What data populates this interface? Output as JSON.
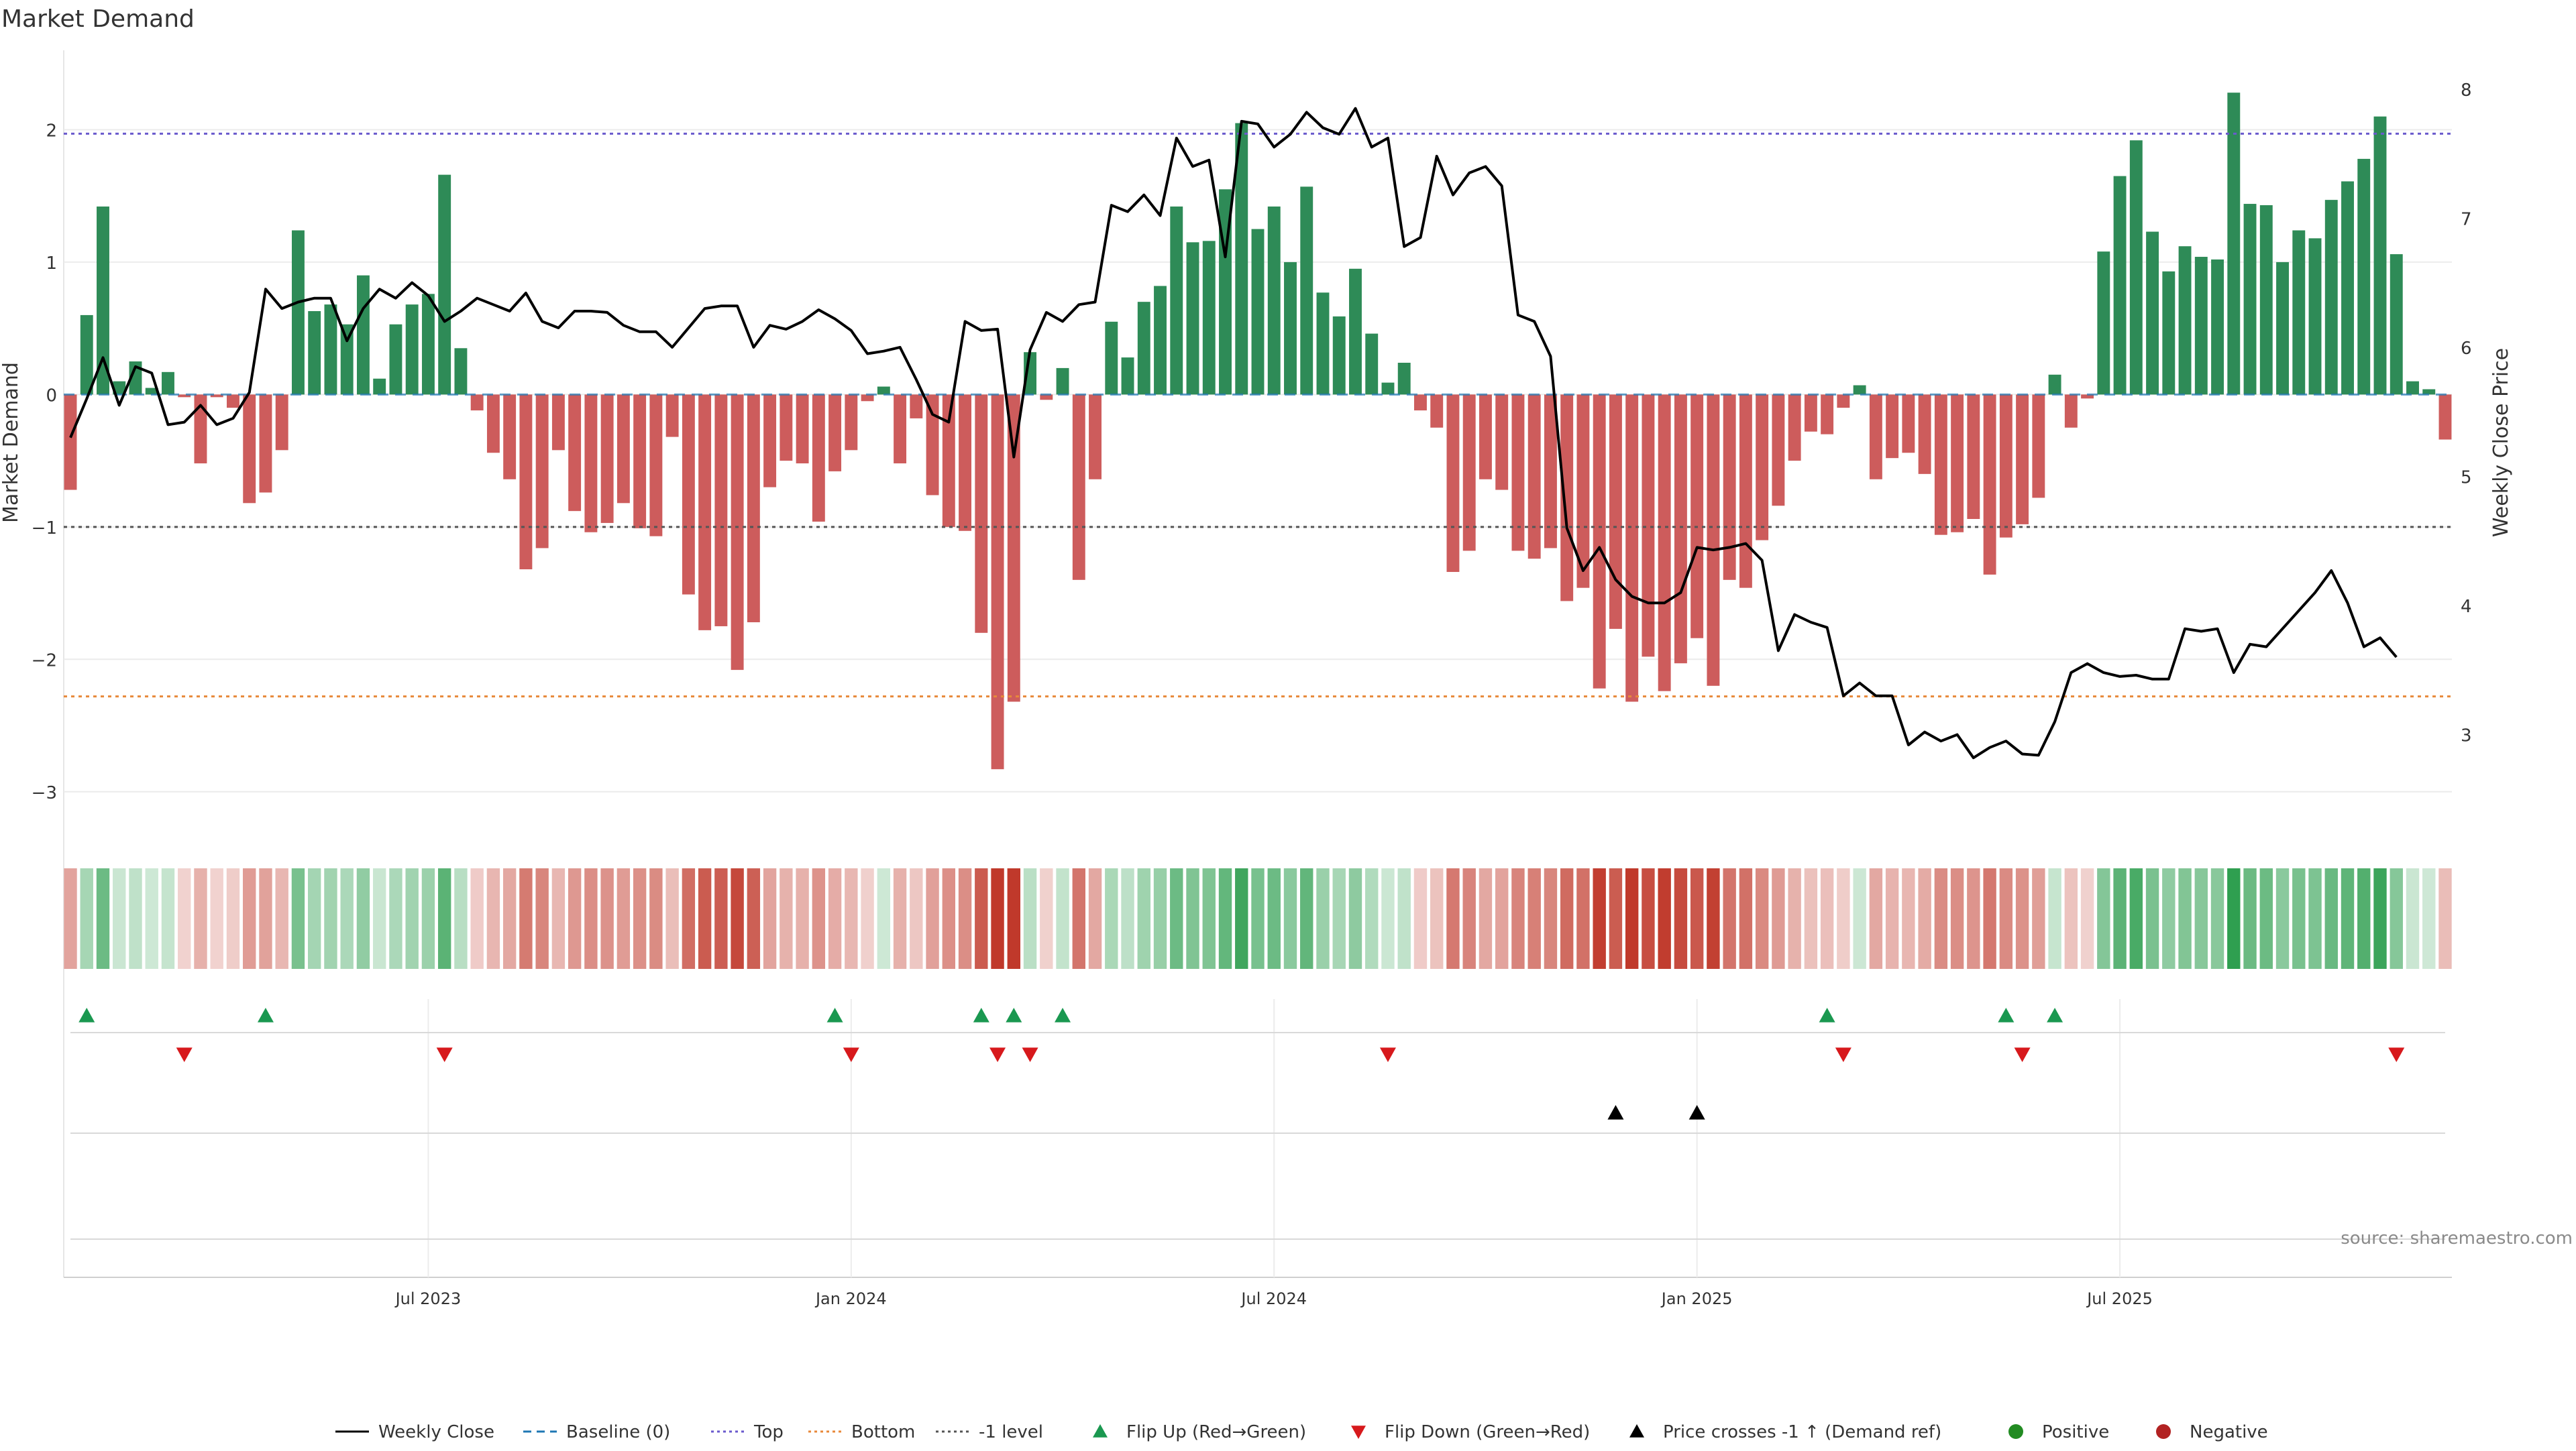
{
  "title": "Market Demand",
  "source_note": "source: sharemaestro.com",
  "colors": {
    "positive": "#2e8b57",
    "negative": "#cd5c5c",
    "price": "#000000",
    "top": "#6a5acd",
    "bottom": "#e8893a",
    "minus_one": "#555555",
    "baseline": "#1f77b4",
    "flip_up": "#1a9850",
    "flip_down": "#d7191c",
    "cross": "#000000",
    "positive_dot": "#228b22",
    "negative_dot": "#b22222"
  },
  "chart_data": {
    "type": "bar",
    "title": "Market Demand",
    "ylabel": "Market Demand",
    "y2label": "Weekly Close Price",
    "ylim": [
      -3.3,
      2.6
    ],
    "y2lim": [
      2.25,
      8.3
    ],
    "yticks": [
      -3,
      -2,
      -1,
      0,
      1,
      2
    ],
    "yticklabels": [
      "−3",
      "−2",
      "−1",
      "0",
      "1",
      "2"
    ],
    "y2ticks": [
      3,
      4,
      5,
      6,
      7,
      8
    ],
    "xticks": [
      {
        "label": "Jul 2023",
        "week": 22
      },
      {
        "label": "Jan 2024",
        "week": 48
      },
      {
        "label": "Jul 2024",
        "week": 74
      },
      {
        "label": "Jan 2025",
        "week": 100
      },
      {
        "label": "Jul 2025",
        "week": 126
      }
    ],
    "reference_lines": [
      {
        "name": "Top",
        "value": 1.97
      },
      {
        "name": "-1 level",
        "value": -1.0
      },
      {
        "name": "Bottom",
        "value": -2.28
      }
    ],
    "demand": [
      -0.72,
      0.6,
      1.42,
      0.1,
      0.25,
      0.05,
      0.17,
      -0.02,
      -0.52,
      -0.02,
      -0.1,
      -0.82,
      -0.74,
      -0.42,
      1.24,
      0.63,
      0.68,
      0.53,
      0.9,
      0.12,
      0.53,
      0.68,
      0.76,
      1.66,
      0.35,
      -0.12,
      -0.44,
      -0.64,
      -1.32,
      -1.16,
      -0.42,
      -0.88,
      -1.04,
      -0.97,
      -0.82,
      -1.01,
      -1.07,
      -0.32,
      -1.51,
      -1.78,
      -1.75,
      -2.08,
      -1.72,
      -0.7,
      -0.5,
      -0.52,
      -0.96,
      -0.58,
      -0.42,
      -0.05,
      0.06,
      -0.52,
      -0.18,
      -0.76,
      -1.0,
      -1.03,
      -1.8,
      -2.83,
      -2.32,
      0.32,
      -0.04,
      0.2,
      -1.4,
      -0.64,
      0.55,
      0.28,
      0.7,
      0.82,
      1.42,
      1.15,
      1.16,
      1.55,
      2.05,
      1.25,
      1.42,
      1.0,
      1.57,
      0.77,
      0.59,
      0.95,
      0.46,
      0.09,
      0.24,
      -0.12,
      -0.25,
      -1.34,
      -1.18,
      -0.64,
      -0.72,
      -1.18,
      -1.24,
      -1.16,
      -1.56,
      -1.46,
      -2.22,
      -1.77,
      -2.32,
      -1.98,
      -2.24,
      -2.03,
      -1.84,
      -2.2,
      -1.4,
      -1.46,
      -1.1,
      -0.84,
      -0.5,
      -0.28,
      -0.3,
      -0.1,
      0.07,
      -0.64,
      -0.48,
      -0.44,
      -0.6,
      -1.06,
      -1.04,
      -0.94,
      -1.36,
      -1.08,
      -0.98,
      -0.78,
      0.15,
      -0.25,
      -0.03,
      1.08,
      1.65,
      1.92,
      1.23,
      0.93,
      1.12,
      1.04,
      1.02,
      2.28,
      1.44,
      1.43,
      1.0,
      1.24,
      1.18,
      1.47,
      1.61,
      1.78,
      2.1,
      1.06,
      0.1,
      0.04,
      -0.34
    ],
    "price": [
      5.3,
      5.6,
      5.92,
      5.55,
      5.85,
      5.8,
      5.4,
      5.42,
      5.55,
      5.4,
      5.45,
      5.65,
      6.45,
      6.3,
      6.35,
      6.38,
      6.38,
      6.05,
      6.3,
      6.45,
      6.38,
      6.5,
      6.4,
      6.2,
      6.28,
      6.38,
      6.33,
      6.28,
      6.42,
      6.2,
      6.15,
      6.28,
      6.28,
      6.27,
      6.17,
      6.12,
      6.12,
      6.0,
      6.15,
      6.3,
      6.32,
      6.32,
      6.0,
      6.17,
      6.14,
      6.2,
      6.29,
      6.22,
      6.13,
      5.95,
      5.97,
      6.0,
      5.75,
      5.48,
      5.42,
      6.2,
      6.13,
      6.14,
      5.15,
      5.98,
      6.27,
      6.2,
      6.33,
      6.35,
      7.1,
      7.05,
      7.18,
      7.02,
      7.62,
      7.4,
      7.45,
      6.7,
      7.75,
      7.73,
      7.55,
      7.65,
      7.82,
      7.7,
      7.65,
      7.85,
      7.55,
      7.62,
      6.78,
      6.85,
      7.48,
      7.18,
      7.35,
      7.4,
      7.25,
      6.25,
      6.2,
      5.93,
      4.6,
      4.27,
      4.45,
      4.2,
      4.07,
      4.02,
      4.02,
      4.1,
      4.45,
      4.43,
      4.45,
      4.48,
      4.35,
      3.65,
      3.93,
      3.87,
      3.83,
      3.3,
      3.4,
      3.3,
      3.3,
      2.92,
      3.02,
      2.95,
      3.0,
      2.82,
      2.9,
      2.95,
      2.85,
      2.84,
      3.1,
      3.48,
      3.55,
      3.48,
      3.45,
      3.46,
      3.43,
      3.43,
      3.82,
      3.8,
      3.82,
      3.48,
      3.7,
      3.68,
      3.82,
      3.96,
      4.1,
      4.27,
      4.02,
      3.68,
      3.75,
      3.6
    ],
    "flip_up_weeks": [
      1,
      12,
      47,
      56,
      58,
      61,
      108,
      119,
      122
    ],
    "flip_down_weeks": [
      7,
      23,
      48,
      57,
      59,
      81,
      109,
      120,
      143
    ],
    "price_cross_weeks": [
      95,
      100
    ],
    "legend": [
      {
        "label": "Weekly Close",
        "kind": "line",
        "color_key": "price"
      },
      {
        "label": "Baseline (0)",
        "kind": "dashed",
        "color_key": "baseline"
      },
      {
        "label": "Top",
        "kind": "dotted",
        "color_key": "top"
      },
      {
        "label": "Bottom",
        "kind": "dotted",
        "color_key": "bottom"
      },
      {
        "label": "-1 level",
        "kind": "dotted",
        "color_key": "minus_one"
      },
      {
        "label": "Flip Up (Red→Green)",
        "kind": "tri-up",
        "color_key": "flip_up"
      },
      {
        "label": "Flip Down (Green→Red)",
        "kind": "tri-down",
        "color_key": "flip_down"
      },
      {
        "label": "Price crosses -1 ↑ (Demand ref)",
        "kind": "tri-up",
        "color_key": "cross"
      },
      {
        "label": "Positive",
        "kind": "dot",
        "color_key": "positive_dot"
      },
      {
        "label": "Negative",
        "kind": "dot",
        "color_key": "negative_dot"
      }
    ]
  }
}
